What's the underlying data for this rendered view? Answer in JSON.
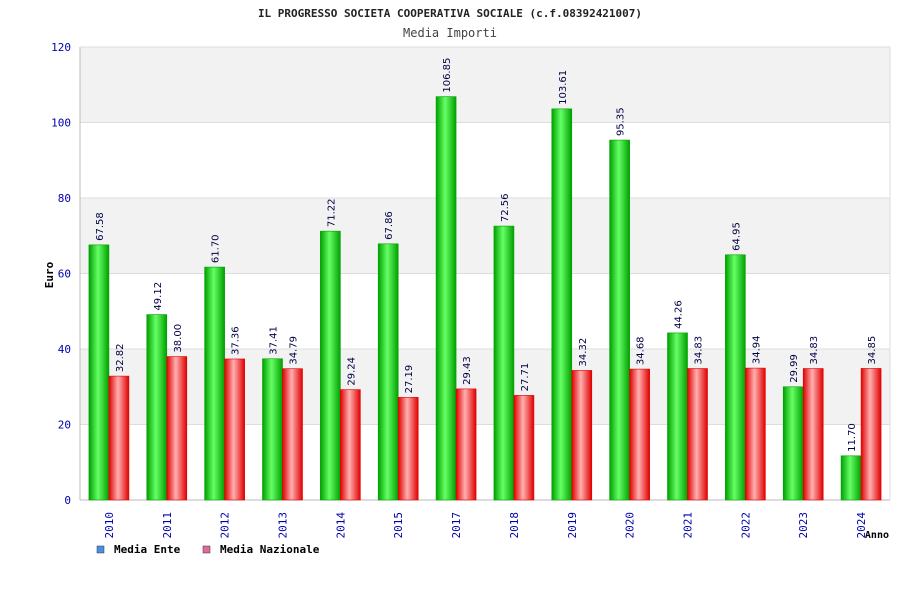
{
  "chart_data": {
    "type": "bar",
    "title": "IL PROGRESSO SOCIETA COOPERATIVA SOCIALE (c.f.08392421007)",
    "subtitle": "Media Importi",
    "ylabel": "Euro",
    "xlabel": "Anno",
    "ylim": [
      0,
      120
    ],
    "yticks": [
      0,
      20,
      40,
      60,
      80,
      100,
      120
    ],
    "grid": true,
    "legend_position": "bottom-left",
    "categories": [
      "2010",
      "2011",
      "2012",
      "2013",
      "2014",
      "2015",
      "2017",
      "2018",
      "2019",
      "2020",
      "2021",
      "2022",
      "2023",
      "2024"
    ],
    "series": [
      {
        "name": "Media Ente",
        "legend_color": "#4a90e2",
        "values": [
          67.58,
          49.12,
          61.7,
          37.41,
          71.22,
          67.86,
          106.85,
          72.56,
          103.61,
          95.35,
          44.26,
          64.95,
          29.99,
          11.7
        ],
        "labels": [
          "67.58",
          "49.12",
          "61.70",
          "37.41",
          "71.22",
          "67.86",
          "106.85",
          "72.56",
          "103.61",
          "95.35",
          "44.26",
          "64.95",
          "29.99",
          "11.70"
        ]
      },
      {
        "name": "Media Nazionale",
        "legend_color": "#e06aa0",
        "values": [
          32.82,
          38.0,
          37.36,
          34.79,
          29.24,
          27.19,
          29.43,
          27.71,
          34.32,
          34.68,
          34.83,
          34.94,
          34.83,
          34.85
        ],
        "labels": [
          "32.82",
          "38.00",
          "37.36",
          "34.79",
          "29.24",
          "27.19",
          "29.43",
          "27.71",
          "34.32",
          "34.68",
          "34.83",
          "34.94",
          "34.83",
          "34.85"
        ]
      }
    ]
  },
  "colors": {
    "axis_text": "#0000aa",
    "band_shade": "#f2f2f2",
    "grid_line": "#dddddd",
    "ente_dark": "#00a000",
    "ente_light": "#66ff66",
    "naz_dark": "#e00000",
    "naz_light": "#ffb0b0"
  }
}
